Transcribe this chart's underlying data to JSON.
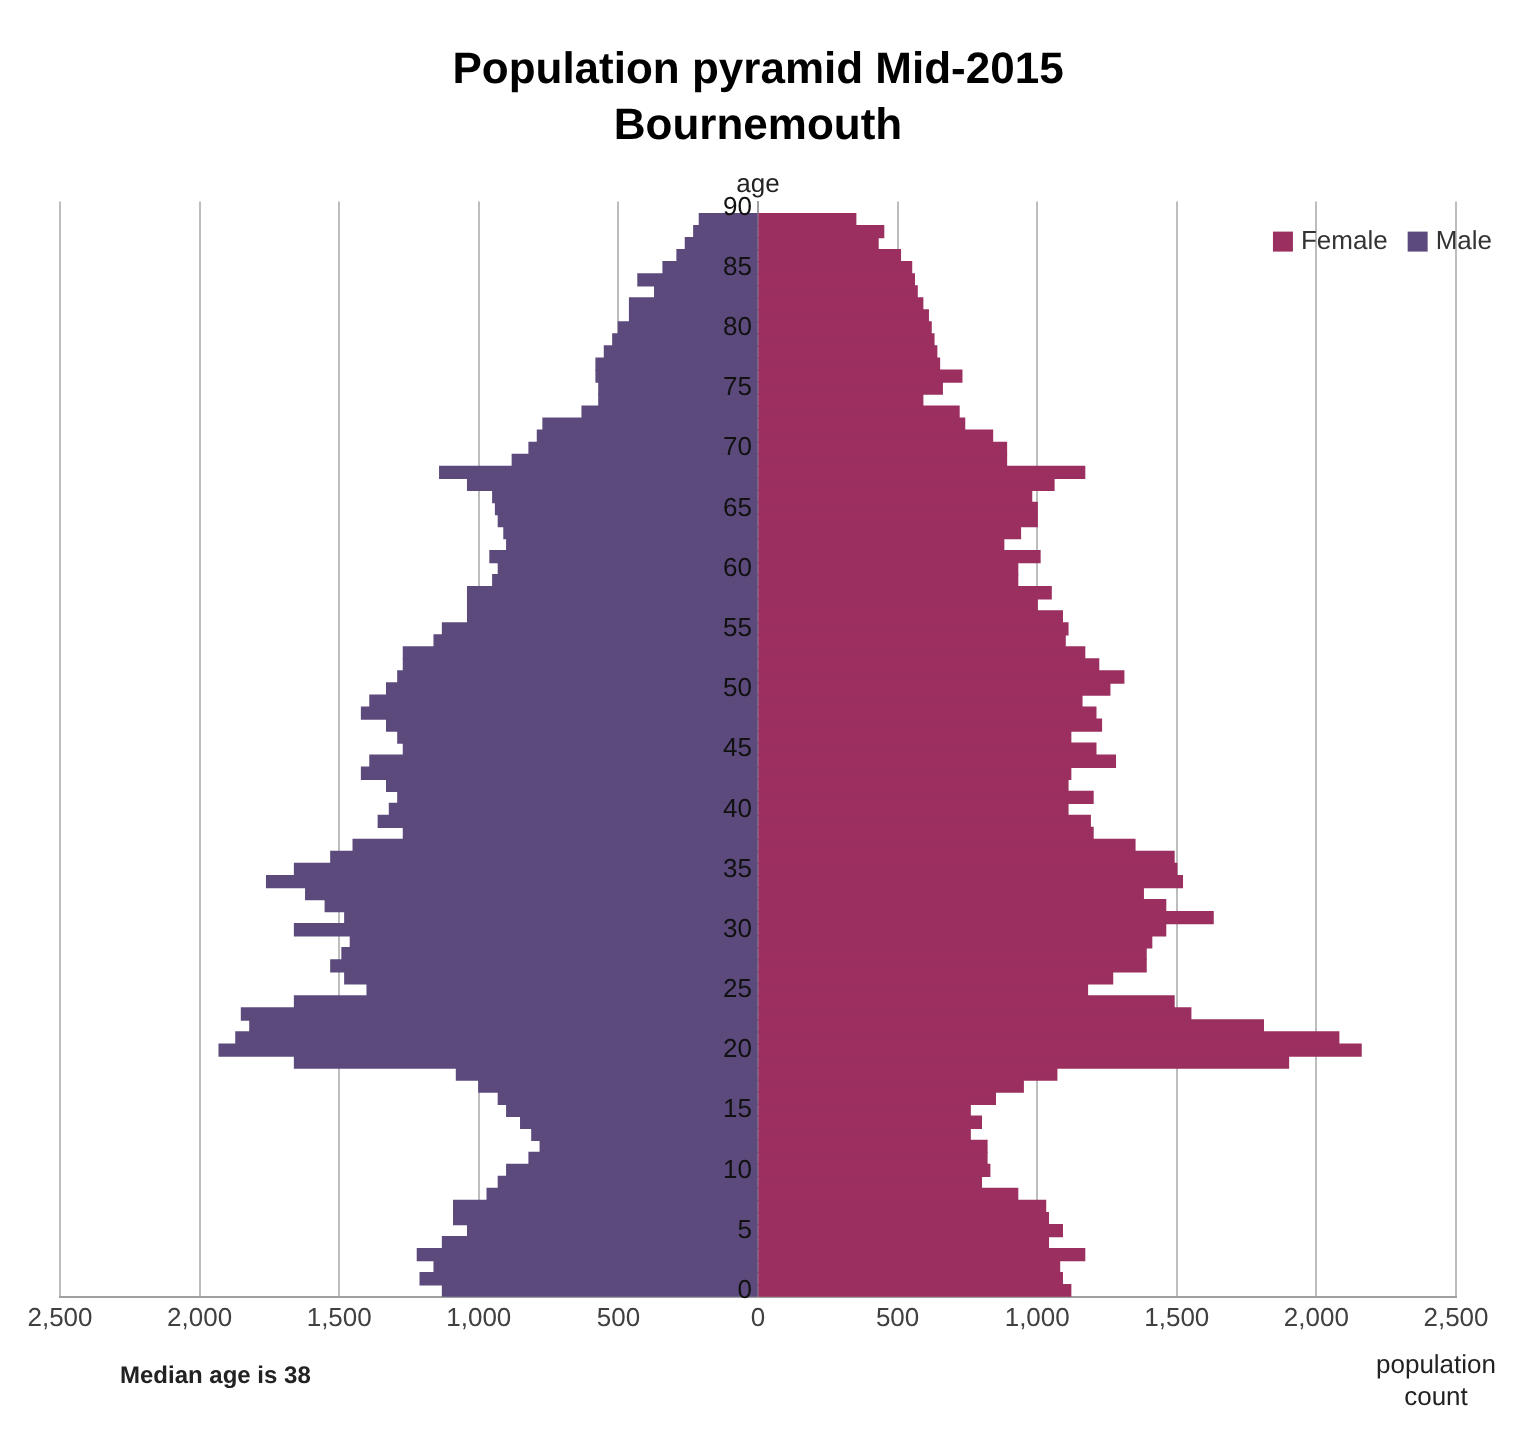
{
  "chart_data": {
    "type": "bar",
    "orientation": "horizontal",
    "stacked": true,
    "title": "Population pyramid Mid-2015",
    "subtitle": "Bournemouth",
    "ylabel": "age",
    "xlabel": "population count",
    "annotations": [
      "Median age is 38"
    ],
    "categories": [
      "90",
      null,
      null,
      null,
      null,
      "85",
      null,
      null,
      null,
      null,
      "80",
      null,
      null,
      null,
      null,
      "75",
      null,
      null,
      null,
      null,
      "70",
      null,
      null,
      null,
      null,
      "65",
      null,
      null,
      null,
      null,
      "60",
      null,
      null,
      null,
      null,
      "55",
      null,
      null,
      null,
      null,
      "50",
      null,
      null,
      null,
      null,
      "45",
      null,
      null,
      null,
      null,
      "40",
      null,
      null,
      null,
      null,
      "35",
      null,
      null,
      null,
      null,
      "30",
      null,
      null,
      null,
      null,
      "25",
      null,
      null,
      null,
      null,
      "20",
      null,
      null,
      null,
      null,
      "15",
      null,
      null,
      null,
      null,
      "10",
      null,
      null,
      null,
      null,
      "5",
      null,
      null,
      null,
      null,
      "0"
    ],
    "series": [
      {
        "name": "Female",
        "color": "#9b2f5f",
        "values": [
          null,
          350,
          450,
          430,
          510,
          550,
          560,
          570,
          590,
          610,
          620,
          630,
          640,
          650,
          730,
          660,
          590,
          720,
          740,
          840,
          890,
          890,
          1170,
          1060,
          980,
          1000,
          1000,
          940,
          880,
          1010,
          930,
          930,
          1050,
          1000,
          1090,
          1110,
          1100,
          1170,
          1220,
          1310,
          1260,
          1160,
          1210,
          1230,
          1120,
          1210,
          1280,
          1120,
          1110,
          1200,
          1110,
          1190,
          1200,
          1350,
          1490,
          1500,
          1520,
          1380,
          1460,
          1630,
          1460,
          1410,
          1390,
          1390,
          1270,
          1180,
          1490,
          1550,
          1810,
          2080,
          2160,
          1900,
          1070,
          950,
          850,
          760,
          800,
          760,
          820,
          820,
          830,
          800,
          930,
          1030,
          1040,
          1090,
          1040,
          1170,
          1080,
          1090,
          1120
        ]
      },
      {
        "name": "Male",
        "color": "#5c4a7d",
        "values": [
          null,
          -210,
          -230,
          -260,
          -290,
          -340,
          -430,
          -370,
          -460,
          -460,
          -500,
          -520,
          -550,
          -580,
          -580,
          -570,
          -570,
          -630,
          -770,
          -790,
          -820,
          -880,
          -1140,
          -1040,
          -950,
          -940,
          -930,
          -910,
          -900,
          -960,
          -930,
          -950,
          -1040,
          -1040,
          -1040,
          -1130,
          -1160,
          -1270,
          -1270,
          -1290,
          -1330,
          -1390,
          -1420,
          -1330,
          -1290,
          -1270,
          -1390,
          -1420,
          -1330,
          -1290,
          -1320,
          -1360,
          -1270,
          -1450,
          -1530,
          -1660,
          -1760,
          -1620,
          -1550,
          -1480,
          -1660,
          -1460,
          -1490,
          -1530,
          -1480,
          -1400,
          -1660,
          -1850,
          -1820,
          -1870,
          -1930,
          -1660,
          -1080,
          -1000,
          -930,
          -900,
          -850,
          -810,
          -780,
          -820,
          -900,
          -930,
          -970,
          -1090,
          -1090,
          -1040,
          -1130,
          -1220,
          -1160,
          -1210,
          -1130
        ]
      }
    ],
    "xlim": [
      -2500,
      2500
    ],
    "xticks": [
      {
        "value": -2500,
        "label": "2,500"
      },
      {
        "value": -2000,
        "label": "2,000"
      },
      {
        "value": -1500,
        "label": "1,500"
      },
      {
        "value": -1000,
        "label": "1,000"
      },
      {
        "value": -500,
        "label": "500"
      },
      0,
      500,
      {
        "value": 1000,
        "label": "1,000"
      },
      {
        "value": 1500,
        "label": "1,500"
      },
      {
        "value": 2000,
        "label": "2,000"
      },
      {
        "value": 2500,
        "label": "2,500"
      }
    ],
    "grid": "x",
    "legend": "top right"
  }
}
